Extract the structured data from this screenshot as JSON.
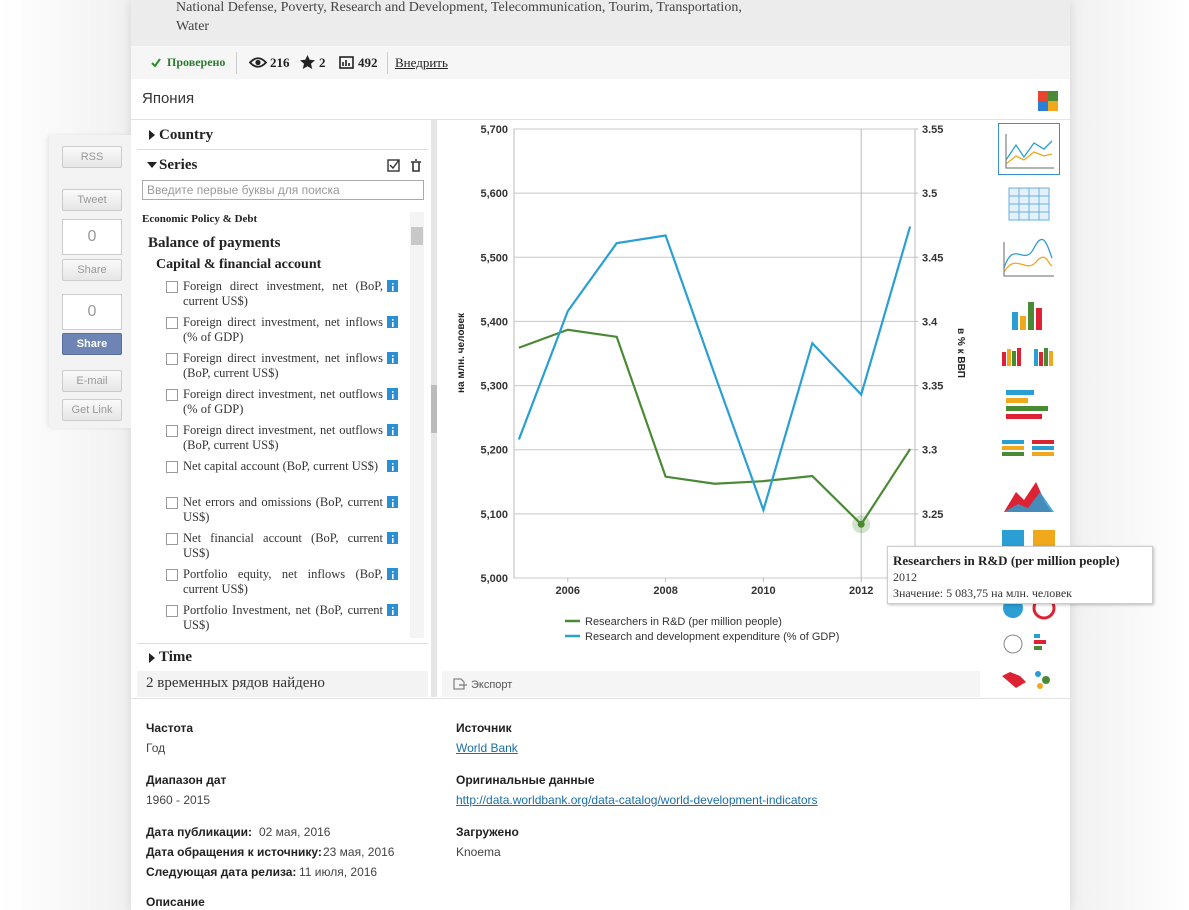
{
  "header": {
    "tags": "National Defense, Poverty, Research and Development, Telecommunication, Tourim, Transportation, Water"
  },
  "toolbar": {
    "verified": "Проверено",
    "views": 216,
    "stars": 2,
    "datasets": 492,
    "embed": "Внедрить"
  },
  "title": "Япония",
  "social": {
    "rss": "RSS",
    "tweet": "Tweet",
    "gplus_count": 0,
    "gplus": "Share",
    "fb_count": 0,
    "fb": "Share",
    "email": "E-mail",
    "link": "Get Link"
  },
  "panel": {
    "country": "Country",
    "series": "Series",
    "search": "Введите первые буквы для поиска",
    "groups": [
      "Economic Policy & Debt",
      "Balance of payments",
      "Capital & financial account"
    ],
    "items": [
      "Foreign direct investment, net (BoP, current US$)",
      "Foreign direct investment, net inflows (% of GDP)",
      "Foreign direct investment, net inflows (BoP, current US$)",
      "Foreign direct investment, net outflows (% of GDP)",
      "Foreign direct investment, net outflows (BoP, current US$)",
      "Net capital account (BoP, current US$)",
      "Net errors and omissions (BoP, current US$)",
      "Net financial account (BoP, current US$)",
      "Portfolio equity, net inflows (BoP, current US$)",
      "Portfolio Investment, net (BoP, current US$)"
    ],
    "time": "Time",
    "found": "2 временных рядов найдено"
  },
  "chart_data": {
    "type": "line",
    "ylabel": "на млн. человек",
    "y2label": "в % к ВВП",
    "x": [
      2005,
      2006,
      2007,
      2008,
      2009,
      2010,
      2011,
      2012,
      2013
    ],
    "xlim": [
      2004.9,
      2013.1
    ],
    "xticks": [
      2006,
      2008,
      2010,
      2012
    ],
    "ylim": [
      5000,
      5700
    ],
    "yticks": [
      {
        "value": 5000,
        "label": "5,000"
      },
      {
        "value": 5100,
        "label": "5,100"
      },
      {
        "value": 5200,
        "label": "5,200"
      },
      {
        "value": 5300,
        "label": "5,300"
      },
      {
        "value": 5400,
        "label": "5,400"
      },
      {
        "value": 5500,
        "label": "5,500"
      },
      {
        "value": 5600,
        "label": "5,600"
      },
      {
        "value": 5700,
        "label": "5,700"
      }
    ],
    "y2lim": [
      3.2,
      3.55
    ],
    "y2ticks": [
      3.25,
      3.3,
      3.35,
      3.4,
      3.45,
      3.5,
      3.55
    ],
    "grid": true,
    "series": [
      {
        "name": "Researchers in R&D (per million people)",
        "color": "#4a8a35",
        "values": [
          5359,
          5387,
          5376,
          5158,
          5147,
          5151,
          5159,
          5083.75,
          5201
        ]
      },
      {
        "name": "Research and development expenditure (% of GDP)",
        "color": "#2b9fd4",
        "axis": "y2",
        "values": [
          3.308,
          3.408,
          3.461,
          3.467,
          3.359,
          3.253,
          3.383,
          3.343,
          3.474
        ]
      }
    ],
    "tooltip": {
      "title": "Researchers in R&D (per million people)",
      "year": "2012",
      "value": "Значение: 5 083,75 на млн. человек"
    }
  },
  "export": "Экспорт",
  "info": {
    "freq_label": "Частота",
    "freq": "Год",
    "range_label": "Диапазон дат",
    "range": "1960 - 2015",
    "pub_label": "Дата публикации:",
    "pub": "02 мая, 2016",
    "access_label": "Дата обращения к источнику:",
    "access": "23 мая, 2016",
    "next_label": "Следующая дата релиза:",
    "next": "11 июля, 2016",
    "desc_label": "Описание",
    "source_label": "Источник",
    "source": "World Bank",
    "orig_label": "Оригинальные данные",
    "orig": "http://data.worldbank.org/data-catalog/world-development-indicators",
    "loaded_label": "Загружено",
    "loaded": "Knoema"
  }
}
